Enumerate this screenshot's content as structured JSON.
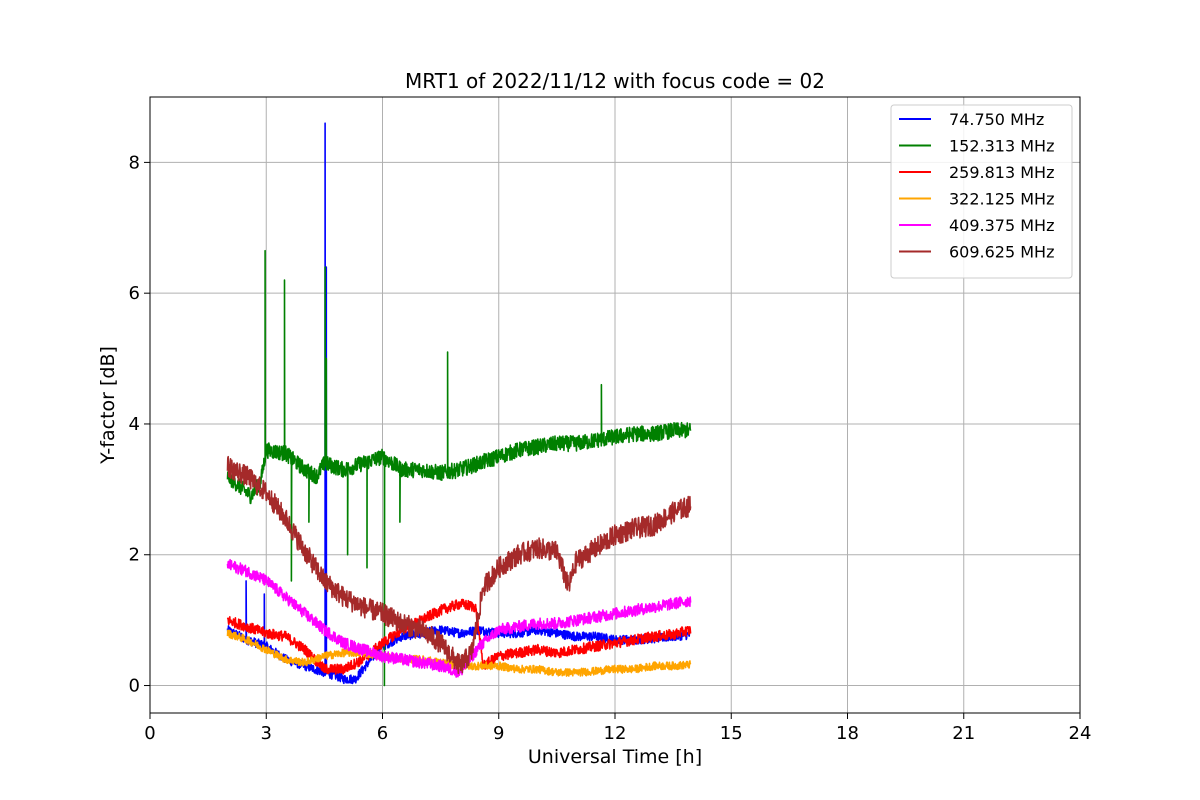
{
  "chart_data": {
    "type": "line",
    "title": "MRT1 of 2022/11/12 with focus code = 02",
    "xlabel": "Universal Time [h]",
    "ylabel": "Y-factor [dB]",
    "xlim": [
      0,
      24
    ],
    "ylim": [
      -0.42,
      9.0
    ],
    "xticks": [
      0,
      3,
      6,
      9,
      12,
      15,
      18,
      21,
      24
    ],
    "yticks": [
      0,
      2,
      4,
      6,
      8
    ],
    "grid": true,
    "legend_position": "top-right",
    "series": [
      {
        "name": " 74.750 MHz",
        "color": "#0000ff",
        "noise": 0.07,
        "points": [
          [
            2.0,
            0.85
          ],
          [
            2.5,
            0.7
          ],
          [
            3.0,
            0.6
          ],
          [
            3.5,
            0.4
          ],
          [
            4.0,
            0.3
          ],
          [
            4.5,
            0.2
          ],
          [
            4.8,
            0.15
          ],
          [
            5.0,
            0.1
          ],
          [
            5.3,
            0.1
          ],
          [
            5.7,
            0.4
          ],
          [
            6.0,
            0.6
          ],
          [
            6.5,
            0.75
          ],
          [
            7.0,
            0.8
          ],
          [
            7.5,
            0.85
          ],
          [
            8.0,
            0.8
          ],
          [
            8.5,
            0.85
          ],
          [
            9.0,
            0.8
          ],
          [
            9.5,
            0.8
          ],
          [
            10.0,
            0.85
          ],
          [
            10.5,
            0.8
          ],
          [
            11.0,
            0.75
          ],
          [
            11.5,
            0.75
          ],
          [
            12.0,
            0.7
          ],
          [
            12.5,
            0.7
          ],
          [
            13.0,
            0.72
          ],
          [
            13.5,
            0.75
          ],
          [
            13.95,
            0.78
          ]
        ],
        "spikes": [
          [
            2.48,
            1.6
          ],
          [
            2.95,
            1.4
          ],
          [
            4.52,
            8.6
          ],
          [
            4.55,
            6.4
          ]
        ]
      },
      {
        "name": "152.313 MHz",
        "color": "#008000",
        "noise": 0.12,
        "points": [
          [
            2.0,
            3.2
          ],
          [
            2.3,
            3.05
          ],
          [
            2.6,
            2.9
          ],
          [
            2.85,
            3.1
          ],
          [
            3.0,
            3.6
          ],
          [
            3.5,
            3.55
          ],
          [
            4.0,
            3.3
          ],
          [
            4.3,
            3.2
          ],
          [
            4.5,
            3.4
          ],
          [
            5.0,
            3.3
          ],
          [
            5.5,
            3.4
          ],
          [
            6.0,
            3.5
          ],
          [
            6.5,
            3.3
          ],
          [
            7.0,
            3.3
          ],
          [
            7.5,
            3.25
          ],
          [
            8.0,
            3.3
          ],
          [
            8.5,
            3.4
          ],
          [
            9.0,
            3.5
          ],
          [
            9.5,
            3.6
          ],
          [
            10.0,
            3.65
          ],
          [
            10.5,
            3.7
          ],
          [
            11.0,
            3.7
          ],
          [
            11.5,
            3.75
          ],
          [
            12.0,
            3.8
          ],
          [
            12.5,
            3.85
          ],
          [
            13.0,
            3.85
          ],
          [
            13.5,
            3.9
          ],
          [
            13.95,
            3.9
          ]
        ],
        "spikes": [
          [
            2.97,
            6.65
          ],
          [
            3.47,
            6.2
          ],
          [
            4.52,
            6.4
          ],
          [
            4.55,
            5.0
          ],
          [
            7.68,
            5.1
          ],
          [
            11.65,
            4.6
          ],
          [
            3.65,
            1.6
          ],
          [
            4.1,
            2.5
          ],
          [
            5.1,
            2.0
          ],
          [
            5.6,
            1.8
          ],
          [
            6.05,
            0.0
          ],
          [
            6.45,
            2.5
          ]
        ]
      },
      {
        "name": "259.813 MHz",
        "color": "#ff0000",
        "noise": 0.08,
        "points": [
          [
            2.0,
            1.0
          ],
          [
            2.5,
            0.9
          ],
          [
            3.0,
            0.8
          ],
          [
            3.5,
            0.75
          ],
          [
            4.0,
            0.55
          ],
          [
            4.5,
            0.25
          ],
          [
            5.0,
            0.25
          ],
          [
            5.5,
            0.4
          ],
          [
            6.0,
            0.65
          ],
          [
            6.5,
            0.85
          ],
          [
            7.0,
            1.0
          ],
          [
            7.5,
            1.15
          ],
          [
            8.0,
            1.25
          ],
          [
            8.4,
            1.2
          ],
          [
            8.6,
            0.3
          ],
          [
            9.0,
            0.45
          ],
          [
            9.5,
            0.5
          ],
          [
            10.0,
            0.55
          ],
          [
            10.5,
            0.5
          ],
          [
            11.0,
            0.55
          ],
          [
            11.5,
            0.6
          ],
          [
            12.0,
            0.65
          ],
          [
            12.5,
            0.7
          ],
          [
            13.0,
            0.75
          ],
          [
            13.5,
            0.78
          ],
          [
            13.95,
            0.85
          ]
        ],
        "spikes": []
      },
      {
        "name": "322.125 MHz",
        "color": "#ffa500",
        "noise": 0.06,
        "points": [
          [
            2.0,
            0.8
          ],
          [
            2.5,
            0.7
          ],
          [
            3.0,
            0.55
          ],
          [
            3.5,
            0.4
          ],
          [
            4.0,
            0.35
          ],
          [
            4.5,
            0.45
          ],
          [
            5.0,
            0.5
          ],
          [
            5.5,
            0.5
          ],
          [
            6.0,
            0.45
          ],
          [
            6.5,
            0.4
          ],
          [
            7.0,
            0.4
          ],
          [
            7.5,
            0.35
          ],
          [
            8.0,
            0.3
          ],
          [
            8.5,
            0.3
          ],
          [
            9.0,
            0.3
          ],
          [
            9.5,
            0.25
          ],
          [
            10.0,
            0.25
          ],
          [
            10.5,
            0.2
          ],
          [
            11.0,
            0.2
          ],
          [
            11.5,
            0.22
          ],
          [
            12.0,
            0.25
          ],
          [
            12.5,
            0.25
          ],
          [
            13.0,
            0.3
          ],
          [
            13.5,
            0.3
          ],
          [
            13.95,
            0.32
          ]
        ],
        "spikes": []
      },
      {
        "name": "409.375 MHz",
        "color": "#ff00ff",
        "noise": 0.09,
        "points": [
          [
            2.0,
            1.85
          ],
          [
            2.5,
            1.75
          ],
          [
            3.0,
            1.6
          ],
          [
            3.5,
            1.35
          ],
          [
            4.0,
            1.1
          ],
          [
            4.5,
            0.85
          ],
          [
            5.0,
            0.65
          ],
          [
            5.5,
            0.55
          ],
          [
            6.0,
            0.45
          ],
          [
            6.5,
            0.4
          ],
          [
            7.0,
            0.35
          ],
          [
            7.5,
            0.3
          ],
          [
            8.0,
            0.2
          ],
          [
            8.5,
            0.6
          ],
          [
            9.0,
            0.85
          ],
          [
            9.5,
            0.9
          ],
          [
            10.0,
            0.95
          ],
          [
            10.5,
            0.95
          ],
          [
            11.0,
            1.0
          ],
          [
            11.5,
            1.05
          ],
          [
            12.0,
            1.1
          ],
          [
            12.5,
            1.15
          ],
          [
            13.0,
            1.2
          ],
          [
            13.5,
            1.25
          ],
          [
            13.95,
            1.3
          ]
        ],
        "spikes": []
      },
      {
        "name": "609.625 MHz",
        "color": "#a52a2a",
        "noise": 0.16,
        "points": [
          [
            2.0,
            3.35
          ],
          [
            2.5,
            3.2
          ],
          [
            3.0,
            2.95
          ],
          [
            3.5,
            2.55
          ],
          [
            4.0,
            2.05
          ],
          [
            4.5,
            1.6
          ],
          [
            5.0,
            1.35
          ],
          [
            5.5,
            1.2
          ],
          [
            6.0,
            1.1
          ],
          [
            6.5,
            0.95
          ],
          [
            7.0,
            0.85
          ],
          [
            7.5,
            0.65
          ],
          [
            8.0,
            0.3
          ],
          [
            8.3,
            0.5
          ],
          [
            8.6,
            1.5
          ],
          [
            9.0,
            1.8
          ],
          [
            9.5,
            2.0
          ],
          [
            10.0,
            2.1
          ],
          [
            10.5,
            2.05
          ],
          [
            10.8,
            1.5
          ],
          [
            11.0,
            1.9
          ],
          [
            11.5,
            2.1
          ],
          [
            12.0,
            2.3
          ],
          [
            12.5,
            2.4
          ],
          [
            13.0,
            2.45
          ],
          [
            13.5,
            2.65
          ],
          [
            13.95,
            2.75
          ]
        ],
        "spikes": []
      }
    ]
  }
}
